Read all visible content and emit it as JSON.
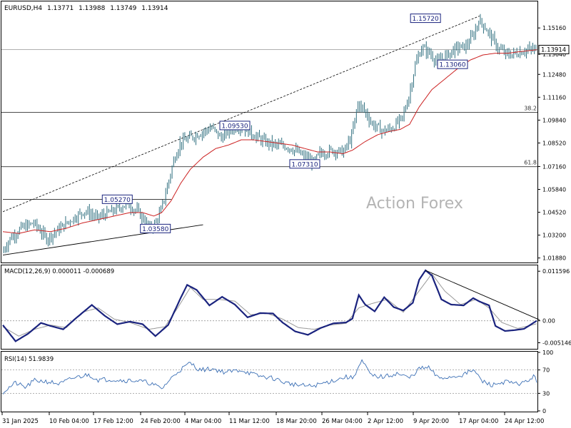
{
  "header": {
    "symbol": "EURUSD,H4",
    "open": "1.13771",
    "high": "1.13988",
    "low": "1.13749",
    "close": "1.13914"
  },
  "watermark": "Action Forex",
  "colors": {
    "candle": "#2f6f7f",
    "ma": "#cc2222",
    "macd": "#1a237e",
    "signal": "#999999",
    "rsi": "#3b6fb5",
    "label_border": "#1a237e"
  },
  "chart_data": [
    {
      "type": "candlestick",
      "panel": "price",
      "ylim": [
        1.0166,
        1.1665
      ],
      "y_ticks": [
        "1.15160",
        "1.13640",
        "1.12480",
        "1.11160",
        "1.09840",
        "1.08520",
        "1.07160",
        "1.05840",
        "1.04520",
        "1.03200",
        "1.01880"
      ],
      "current_price": "1.13914",
      "fib_levels": [
        {
          "label": "38.2",
          "price": 1.1029
        },
        {
          "label": "61.8",
          "price": 1.0715
        }
      ],
      "annotations": [
        {
          "text": "1.15720",
          "price": 1.1572
        },
        {
          "text": "1.13060",
          "price": 1.1306
        },
        {
          "text": "1.09530",
          "price": 1.0953
        },
        {
          "text": "1.07310",
          "price": 1.0731
        },
        {
          "text": "1.05270",
          "price": 1.0527
        },
        {
          "text": "1.03580",
          "price": 1.0358
        }
      ],
      "path_pts": [
        [
          0,
          1.022
        ],
        [
          5,
          1.03
        ],
        [
          12,
          1.036
        ],
        [
          20,
          1.039
        ],
        [
          28,
          1.03
        ],
        [
          34,
          1.034
        ],
        [
          42,
          1.04
        ],
        [
          52,
          1.046
        ],
        [
          60,
          1.042
        ],
        [
          70,
          1.046
        ],
        [
          78,
          1.05
        ],
        [
          85,
          1.046
        ],
        [
          90,
          1.04
        ],
        [
          93,
          1.036
        ],
        [
          96,
          1.038
        ],
        [
          100,
          1.046
        ],
        [
          104,
          1.06
        ],
        [
          108,
          1.075
        ],
        [
          112,
          1.085
        ],
        [
          118,
          1.088
        ],
        [
          125,
          1.091
        ],
        [
          132,
          1.094
        ],
        [
          138,
          1.088
        ],
        [
          143,
          1.093
        ],
        [
          150,
          1.095
        ],
        [
          158,
          1.09
        ],
        [
          165,
          1.086
        ],
        [
          172,
          1.084
        ],
        [
          180,
          1.083
        ],
        [
          186,
          1.08
        ],
        [
          192,
          1.076
        ],
        [
          196,
          1.074
        ],
        [
          200,
          1.079
        ],
        [
          208,
          1.081
        ],
        [
          215,
          1.08
        ],
        [
          220,
          1.089
        ],
        [
          224,
          1.108
        ],
        [
          228,
          1.104
        ],
        [
          233,
          1.096
        ],
        [
          240,
          1.092
        ],
        [
          246,
          1.094
        ],
        [
          252,
          1.1
        ],
        [
          256,
          1.112
        ],
        [
          260,
          1.13
        ],
        [
          264,
          1.14
        ],
        [
          268,
          1.138
        ],
        [
          274,
          1.132
        ],
        [
          280,
          1.136
        ],
        [
          286,
          1.14
        ],
        [
          292,
          1.141
        ],
        [
          297,
          1.148
        ],
        [
          300,
          1.156
        ],
        [
          304,
          1.152
        ],
        [
          308,
          1.146
        ],
        [
          312,
          1.14
        ],
        [
          318,
          1.136
        ],
        [
          324,
          1.137
        ],
        [
          330,
          1.139
        ],
        [
          336,
          1.1391
        ]
      ],
      "ma_pts": [
        [
          0,
          1.034
        ],
        [
          10,
          1.033
        ],
        [
          20,
          1.035
        ],
        [
          30,
          1.034
        ],
        [
          40,
          1.036
        ],
        [
          50,
          1.039
        ],
        [
          60,
          1.041
        ],
        [
          70,
          1.043
        ],
        [
          80,
          1.045
        ],
        [
          88,
          1.045
        ],
        [
          95,
          1.043
        ],
        [
          100,
          1.045
        ],
        [
          106,
          1.052
        ],
        [
          112,
          1.062
        ],
        [
          118,
          1.07
        ],
        [
          126,
          1.077
        ],
        [
          134,
          1.082
        ],
        [
          142,
          1.084
        ],
        [
          150,
          1.087
        ],
        [
          158,
          1.087
        ],
        [
          166,
          1.086
        ],
        [
          174,
          1.085
        ],
        [
          182,
          1.084
        ],
        [
          190,
          1.082
        ],
        [
          198,
          1.08
        ],
        [
          206,
          1.08
        ],
        [
          214,
          1.079
        ],
        [
          220,
          1.081
        ],
        [
          228,
          1.086
        ],
        [
          236,
          1.09
        ],
        [
          244,
          1.092
        ],
        [
          250,
          1.093
        ],
        [
          256,
          1.096
        ],
        [
          262,
          1.106
        ],
        [
          270,
          1.116
        ],
        [
          278,
          1.122
        ],
        [
          286,
          1.128
        ],
        [
          294,
          1.133
        ],
        [
          302,
          1.136
        ],
        [
          310,
          1.137
        ],
        [
          318,
          1.137
        ],
        [
          326,
          1.138
        ],
        [
          336,
          1.139
        ]
      ]
    },
    {
      "type": "line",
      "panel": "macd",
      "title": "MACD(12,26,9) 0.000011 -0.000689",
      "ylim": [
        -0.0064,
        0.0128
      ],
      "y_ticks": [
        "0.011596",
        "0.00",
        "-0.005146"
      ],
      "series": [
        {
          "pts": [
            [
              0,
              -0.001
            ],
            [
              8,
              -0.0048
            ],
            [
              16,
              -0.003
            ],
            [
              24,
              -0.0005
            ],
            [
              30,
              -0.0012
            ],
            [
              38,
              -0.002
            ],
            [
              46,
              0.0006
            ],
            [
              56,
              0.0037
            ],
            [
              64,
              0.0012
            ],
            [
              72,
              -0.0008
            ],
            [
              80,
              -0.0002
            ],
            [
              88,
              -0.0008
            ],
            [
              96,
              -0.0036
            ],
            [
              104,
              -0.001
            ],
            [
              112,
              0.0054
            ],
            [
              116,
              0.0084
            ],
            [
              122,
              0.0072
            ],
            [
              130,
              0.0036
            ],
            [
              138,
              0.0056
            ],
            [
              146,
              0.0038
            ],
            [
              154,
              0.0008
            ],
            [
              162,
              0.0018
            ],
            [
              170,
              0.0017
            ],
            [
              176,
              -0.0004
            ],
            [
              184,
              -0.0025
            ],
            [
              192,
              -0.0033
            ],
            [
              200,
              -0.0017
            ],
            [
              208,
              -0.0006
            ],
            [
              216,
              -0.0004
            ],
            [
              220,
              0.0005
            ],
            [
              224,
              0.006
            ],
            [
              228,
              0.0038
            ],
            [
              234,
              0.0022
            ],
            [
              240,
              0.0055
            ],
            [
              246,
              0.0032
            ],
            [
              252,
              0.0024
            ],
            [
              258,
              0.0042
            ],
            [
              262,
              0.0096
            ],
            [
              266,
              0.0118
            ],
            [
              270,
              0.0106
            ],
            [
              276,
              0.005
            ],
            [
              282,
              0.0038
            ],
            [
              290,
              0.0036
            ],
            [
              296,
              0.0053
            ],
            [
              300,
              0.0045
            ],
            [
              306,
              0.0036
            ],
            [
              310,
              -0.0012
            ],
            [
              316,
              -0.0024
            ],
            [
              322,
              -0.0022
            ],
            [
              328,
              -0.0019
            ],
            [
              336,
              0.0
            ]
          ]
        },
        {
          "pts": [
            [
              0,
              -0.0014
            ],
            [
              10,
              -0.0036
            ],
            [
              20,
              -0.002
            ],
            [
              30,
              -0.001
            ],
            [
              40,
              -0.0016
            ],
            [
              50,
              0.002
            ],
            [
              60,
              0.003
            ],
            [
              70,
              0.0004
            ],
            [
              80,
              -0.0004
            ],
            [
              92,
              -0.002
            ],
            [
              102,
              -0.0014
            ],
            [
              110,
              0.003
            ],
            [
              118,
              0.0078
            ],
            [
              126,
              0.005
            ],
            [
              136,
              0.005
            ],
            [
              146,
              0.0046
            ],
            [
              156,
              0.0014
            ],
            [
              166,
              0.0018
            ],
            [
              176,
              0.0004
            ],
            [
              186,
              -0.0016
            ],
            [
              196,
              -0.002
            ],
            [
              206,
              -0.001
            ],
            [
              216,
              -0.0006
            ],
            [
              224,
              0.003
            ],
            [
              232,
              0.004
            ],
            [
              242,
              0.005
            ],
            [
              252,
              0.002
            ],
            [
              262,
              0.007
            ],
            [
              270,
              0.011
            ],
            [
              278,
              0.007
            ],
            [
              288,
              0.0038
            ],
            [
              298,
              0.005
            ],
            [
              306,
              0.003
            ],
            [
              314,
              -0.0004
            ],
            [
              324,
              -0.0018
            ],
            [
              336,
              -0.0007
            ]
          ]
        }
      ],
      "trendline": [
        [
          266,
          0.0118
        ],
        [
          336,
          0.0002
        ]
      ]
    },
    {
      "type": "line",
      "panel": "rsi",
      "title": "RSI(14) 51.9839",
      "ylim": [
        0,
        100
      ],
      "y_ticks": [
        "100",
        "70",
        "30",
        "0"
      ],
      "levels": [
        70,
        30
      ],
      "series": [
        {
          "pts": [
            [
              0,
              32
            ],
            [
              8,
              48
            ],
            [
              14,
              40
            ],
            [
              20,
              52
            ],
            [
              28,
              50
            ],
            [
              36,
              46
            ],
            [
              44,
              56
            ],
            [
              54,
              62
            ],
            [
              60,
              53
            ],
            [
              68,
              54
            ],
            [
              76,
              52
            ],
            [
              84,
              52
            ],
            [
              92,
              48
            ],
            [
              100,
              38
            ],
            [
              104,
              50
            ],
            [
              110,
              67
            ],
            [
              118,
              82
            ],
            [
              124,
              70
            ],
            [
              132,
              72
            ],
            [
              140,
              66
            ],
            [
              150,
              70
            ],
            [
              160,
              60
            ],
            [
              170,
              56
            ],
            [
              178,
              48
            ],
            [
              186,
              44
            ],
            [
              194,
              42
            ],
            [
              200,
              46
            ],
            [
              208,
              52
            ],
            [
              216,
              58
            ],
            [
              220,
              56
            ],
            [
              226,
              85
            ],
            [
              232,
              60
            ],
            [
              240,
              58
            ],
            [
              248,
              64
            ],
            [
              256,
              56
            ],
            [
              262,
              72
            ],
            [
              268,
              74
            ],
            [
              274,
              56
            ],
            [
              282,
              58
            ],
            [
              290,
              62
            ],
            [
              296,
              70
            ],
            [
              302,
              50
            ],
            [
              308,
              44
            ],
            [
              316,
              50
            ],
            [
              322,
              46
            ],
            [
              328,
              48
            ],
            [
              334,
              58
            ],
            [
              336,
              52
            ]
          ]
        }
      ]
    }
  ],
  "x_axis": {
    "labels": [
      "31 Jan 2025",
      "10 Feb 04:00",
      "17 Feb 12:00",
      "24 Feb 20:00",
      "4 Mar 04:00",
      "11 Mar 12:00",
      "18 Mar 20:00",
      "26 Mar 04:00",
      "2 Apr 12:00",
      "9 Apr 20:00",
      "17 Apr 04:00",
      "24 Apr 12:00"
    ]
  }
}
